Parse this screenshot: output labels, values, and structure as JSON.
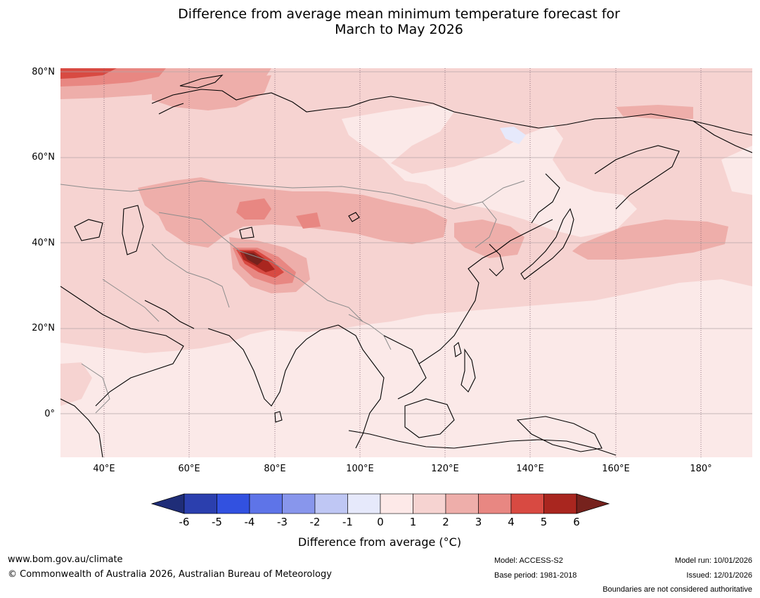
{
  "title_line1": "Difference from average mean minimum temperature forecast for",
  "title_line2": "March to May 2026",
  "lat_labels": [
    "80°N",
    "60°N",
    "40°N",
    "20°N",
    "0°"
  ],
  "lon_labels": [
    "40°E",
    "60°E",
    "80°E",
    "100°E",
    "120°E",
    "140°E",
    "160°E",
    "180°"
  ],
  "colorbar": {
    "ticks": [
      "-6",
      "-5",
      "-4",
      "-3",
      "-2",
      "-1",
      "0",
      "1",
      "2",
      "3",
      "4",
      "5",
      "6"
    ],
    "colors": [
      "#2b3fae",
      "#3251e0",
      "#5e74e8",
      "#8896ec",
      "#bfc7f4",
      "#e6e9fb",
      "#fde9e8",
      "#f6d3d1",
      "#eeaeaa",
      "#e88782",
      "#d84a42",
      "#a9261f"
    ],
    "low_extend_color": "#1f2d78",
    "high_extend_color": "#76221d",
    "label": "Difference from average (°C)"
  },
  "footer": {
    "website": "www.bom.gov.au/climate",
    "copyright": "© Commonwealth of Australia 2026, Australian Bureau of Meteorology",
    "model": "Model: ACCESS-S2",
    "base_period": "Base period: 1981-2018",
    "model_run": "Model run: 10/01/2026",
    "issued": "Issued: 12/01/2026",
    "boundaries_note": "Boundaries are not considered authoritative"
  }
}
